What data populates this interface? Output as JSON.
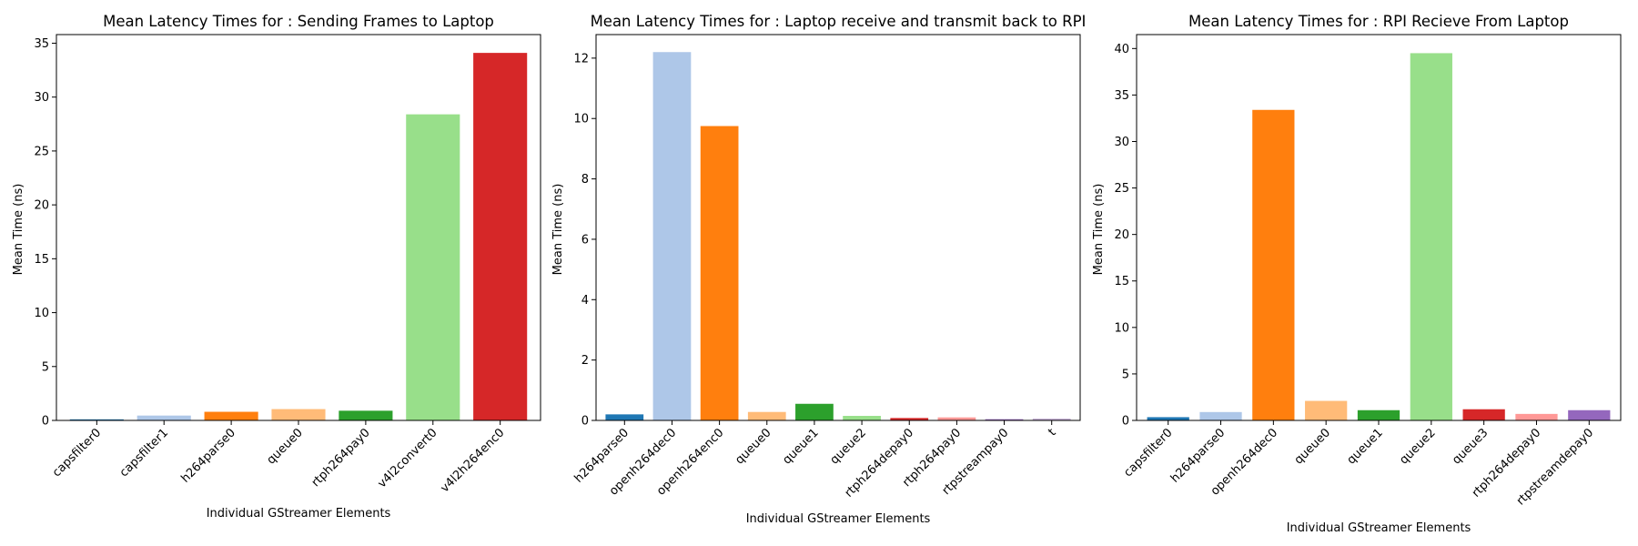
{
  "chart_data": [
    {
      "type": "bar",
      "title": "Mean Latency Times for : Sending Frames to Laptop",
      "xlabel": "Individual GStreamer Elements",
      "ylabel": "Mean Time (ns)",
      "categories": [
        "capsfilter0",
        "capsfilter1",
        "h264parse0",
        "queue0",
        "rtph264pay0",
        "v4l2convert0",
        "v4l2h264enc0"
      ],
      "values": [
        0.1,
        0.45,
        0.8,
        1.05,
        0.9,
        28.4,
        34.1
      ],
      "colors": [
        "#1f77b4",
        "#aec7e8",
        "#ff7f0e",
        "#ffbb78",
        "#2ca02c",
        "#98df8a",
        "#d62728"
      ],
      "ylim": [
        0,
        35.8
      ],
      "yticks": [
        0,
        5,
        10,
        15,
        20,
        25,
        30,
        35
      ],
      "grid": false
    },
    {
      "type": "bar",
      "title": "Mean Latency Times for : Laptop receive and transmit back to RPI",
      "xlabel": "Individual GStreamer Elements",
      "ylabel": "Mean Time (ns)",
      "categories": [
        "h264parse0",
        "openh264dec0",
        "openh264enc0",
        "queue0",
        "queue1",
        "queue2",
        "rtph264depay0",
        "rtph264pay0",
        "rtpstreampay0",
        "t"
      ],
      "values": [
        0.2,
        12.2,
        9.75,
        0.28,
        0.55,
        0.15,
        0.08,
        0.1,
        0.04,
        0.06
      ],
      "colors": [
        "#1f77b4",
        "#aec7e8",
        "#ff7f0e",
        "#ffbb78",
        "#2ca02c",
        "#98df8a",
        "#d62728",
        "#ff9896",
        "#9467bd",
        "#c5b0d5"
      ],
      "ylim": [
        0,
        12.78
      ],
      "yticks": [
        0,
        2,
        4,
        6,
        8,
        10,
        12
      ],
      "grid": false
    },
    {
      "type": "bar",
      "title": "Mean Latency Times for : RPI Recieve From Laptop",
      "xlabel": "Individual GStreamer Elements",
      "ylabel": "Mean Time (ns)",
      "categories": [
        "capsfilter0",
        "h264parse0",
        "openh264dec0",
        "queue0",
        "queue1",
        "queue2",
        "queue3",
        "rtph264depay0",
        "rtpstreamdepay0"
      ],
      "values": [
        0.35,
        0.9,
        33.4,
        2.1,
        1.1,
        39.5,
        1.2,
        0.7,
        1.1
      ],
      "colors": [
        "#1f77b4",
        "#aec7e8",
        "#ff7f0e",
        "#ffbb78",
        "#2ca02c",
        "#98df8a",
        "#d62728",
        "#ff9896",
        "#9467bd"
      ],
      "ylim": [
        0,
        41.5
      ],
      "yticks": [
        0,
        5,
        10,
        15,
        20,
        25,
        30,
        35,
        40
      ],
      "grid": false
    }
  ]
}
